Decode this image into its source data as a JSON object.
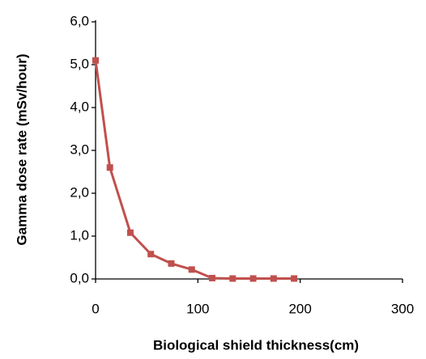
{
  "chart_data": {
    "type": "line",
    "x_label": "Biological shield thickness(cm)",
    "y_label": "Gamma dose rate (mSv/hour)",
    "x": [
      0,
      14,
      34,
      54,
      74,
      94,
      114,
      134,
      154,
      174,
      194
    ],
    "series": [
      {
        "color": "#c0504d",
        "values": [
          5.1,
          2.6,
          1.08,
          0.58,
          0.36,
          0.22,
          0.02,
          0.01,
          0.01,
          0.01,
          0.01
        ]
      }
    ],
    "xlim": [
      0,
      300
    ],
    "xticks": [
      0,
      100,
      200,
      300
    ],
    "ylim": [
      0,
      6
    ],
    "yticks": [
      {
        "value": 0,
        "label": "0,0"
      },
      {
        "value": 1,
        "label": "1,0"
      },
      {
        "value": 2,
        "label": "2,0"
      },
      {
        "value": 3,
        "label": "3,0"
      },
      {
        "value": 4,
        "label": "4,0"
      },
      {
        "value": 5,
        "label": "5,0"
      },
      {
        "value": 6,
        "label": "6,0"
      }
    ],
    "grid": false
  }
}
